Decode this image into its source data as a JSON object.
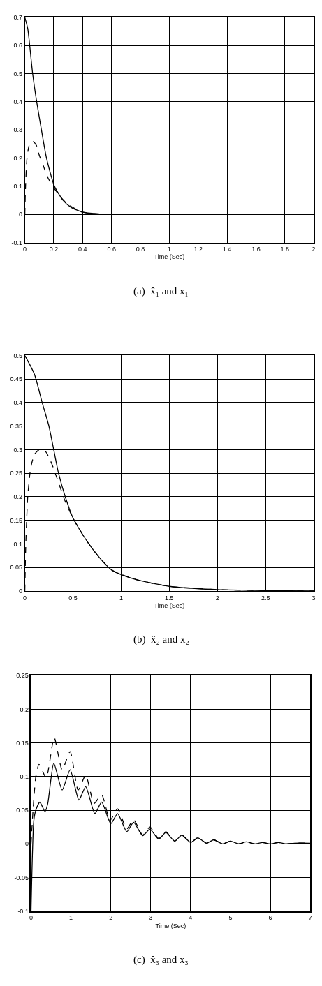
{
  "chart_data": [
    {
      "type": "line",
      "xlabel": "Time (Sec)",
      "annotations": [
        "(a)  x̂₁ and x₁"
      ],
      "xlim": [
        0,
        2
      ],
      "xticks": [
        0,
        0.2,
        0.4,
        0.6,
        0.8,
        1,
        1.2,
        1.4,
        1.6,
        1.8,
        2
      ],
      "ylim": [
        -0.1,
        0.7
      ],
      "yticks": [
        -0.1,
        0,
        0.1,
        0.2,
        0.3,
        0.4,
        0.5,
        0.6,
        0.7
      ],
      "grid": true,
      "series": [
        {
          "color": "#000000",
          "line_style": "solid",
          "x": [
            0,
            0.02,
            0.054,
            0.082,
            0.115,
            0.15,
            0.205,
            0.265,
            0.32,
            0.4,
            0.5,
            0.6,
            2
          ],
          "values": [
            0.7,
            0.66,
            0.5,
            0.4,
            0.3,
            0.2,
            0.1,
            0.05,
            0.025,
            0.008,
            0.002,
            0,
            0
          ]
        },
        {
          "color": "#000000",
          "line_style": "dashed",
          "x": [
            0,
            0.005,
            0.015,
            0.03,
            0.055,
            0.08,
            0.1,
            0.13,
            0.16,
            0.2,
            0.25,
            0.3,
            0.4,
            0.5,
            0.6,
            2
          ],
          "values": [
            0,
            0.1,
            0.2,
            0.245,
            0.26,
            0.245,
            0.21,
            0.17,
            0.13,
            0.095,
            0.06,
            0.035,
            0.008,
            0.002,
            0,
            0
          ]
        }
      ]
    },
    {
      "type": "line",
      "xlabel": "Time (Sec)",
      "annotations": [
        "(b)  x̂₂ and x₂"
      ],
      "xlim": [
        0,
        3
      ],
      "xticks": [
        0,
        0.5,
        1,
        1.5,
        2,
        2.5,
        3
      ],
      "ylim": [
        0,
        0.5
      ],
      "yticks": [
        0,
        0.05,
        0.1,
        0.15,
        0.2,
        0.25,
        0.3,
        0.35,
        0.4,
        0.45,
        0.5
      ],
      "grid": true,
      "series": [
        {
          "color": "#000000",
          "line_style": "solid",
          "x": [
            0,
            0.1,
            0.18,
            0.25,
            0.3,
            0.35,
            0.42,
            0.5,
            0.6,
            0.7,
            0.8,
            0.9,
            1,
            1.2,
            1.5,
            2,
            2.5,
            3
          ],
          "values": [
            0.5,
            0.46,
            0.4,
            0.35,
            0.3,
            0.25,
            0.2,
            0.155,
            0.12,
            0.09,
            0.065,
            0.045,
            0.035,
            0.022,
            0.01,
            0.003,
            0.001,
            0
          ]
        },
        {
          "color": "#000000",
          "line_style": "dashed",
          "x": [
            0,
            0.01,
            0.03,
            0.06,
            0.1,
            0.17,
            0.22,
            0.28,
            0.35,
            0.42,
            0.5,
            0.6,
            0.7,
            0.8,
            0.9,
            1,
            1.2,
            1.5,
            2,
            2.5,
            3
          ],
          "values": [
            0,
            0.1,
            0.2,
            0.26,
            0.29,
            0.303,
            0.295,
            0.27,
            0.23,
            0.19,
            0.155,
            0.12,
            0.09,
            0.065,
            0.045,
            0.035,
            0.022,
            0.01,
            0.003,
            0.001,
            0
          ]
        }
      ]
    },
    {
      "type": "line",
      "xlabel": "Time (Sec)",
      "annotations": [
        "(c)  x̂₃ and x₃"
      ],
      "xlim": [
        0,
        7
      ],
      "xticks": [
        0,
        1,
        2,
        3,
        4,
        5,
        6,
        7
      ],
      "ylim": [
        -0.1,
        0.25
      ],
      "yticks": [
        -0.1,
        -0.05,
        0,
        0.05,
        0.1,
        0.15,
        0.2,
        0.25
      ],
      "grid": true,
      "series": [
        {
          "color": "#000000",
          "line_style": "solid",
          "x": [
            0,
            0.07,
            0.12,
            0.22,
            0.35,
            0.42,
            0.57,
            0.78,
            0.98,
            1.2,
            1.37,
            1.6,
            1.77,
            2,
            2.17,
            2.4,
            2.57,
            2.8,
            2.98,
            3.2,
            3.38,
            3.6,
            3.78,
            4,
            4.18,
            4.4,
            4.58,
            4.8,
            5,
            5.2,
            5.4,
            5.6,
            5.8,
            6,
            6.2,
            6.4,
            6.6,
            7
          ],
          "values": [
            -0.1,
            0.035,
            0.05,
            0.062,
            0.048,
            0.06,
            0.12,
            0.08,
            0.11,
            0.065,
            0.085,
            0.045,
            0.062,
            0.03,
            0.045,
            0.018,
            0.032,
            0.012,
            0.022,
            0.007,
            0.017,
            0.004,
            0.013,
            0.002,
            0.009,
            0.001,
            0.006,
            0,
            0.004,
            0,
            0.003,
            0,
            0.002,
            0,
            0.002,
            0,
            0.001,
            0.001
          ]
        },
        {
          "color": "#000000",
          "line_style": "dashed",
          "x": [
            0,
            0.05,
            0.12,
            0.2,
            0.38,
            0.58,
            0.78,
            0.98,
            1.18,
            1.37,
            1.58,
            1.77,
            1.98,
            2.17,
            2.4,
            2.57,
            2.8,
            2.98,
            3.2,
            3.38,
            3.6,
            3.78,
            4,
            4.18,
            4.4,
            4.58,
            4.8,
            5,
            5.2,
            5.4,
            5.6,
            5.8,
            6,
            6.2,
            6.4,
            6.6,
            7
          ],
          "values": [
            0,
            0.05,
            0.1,
            0.118,
            0.098,
            0.158,
            0.11,
            0.137,
            0.08,
            0.102,
            0.06,
            0.073,
            0.035,
            0.052,
            0.022,
            0.036,
            0.013,
            0.025,
            0.008,
            0.018,
            0.004,
            0.013,
            0.002,
            0.009,
            0.001,
            0.006,
            0,
            0.004,
            0,
            0.003,
            0,
            0.002,
            0,
            0.002,
            0,
            0.001,
            0.001
          ]
        }
      ]
    }
  ]
}
